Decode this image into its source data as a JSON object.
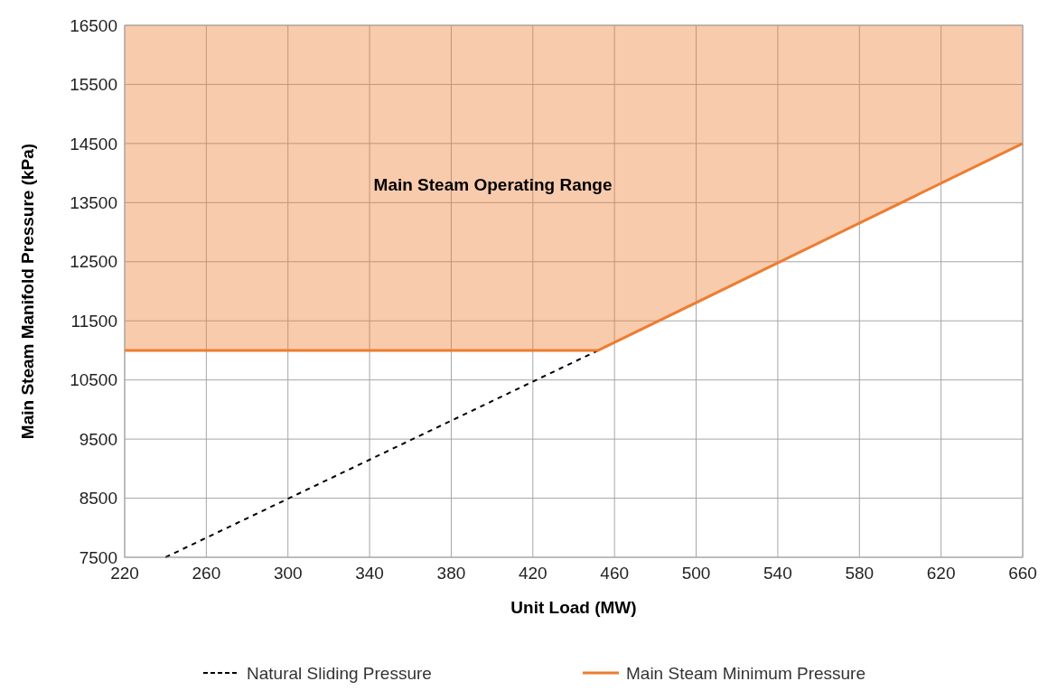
{
  "chart_data": {
    "type": "line",
    "xlabel": "Unit Load (MW)",
    "ylabel": "Main Steam Manifold Pressure (kPa)",
    "xlim": [
      220,
      660
    ],
    "xticks": [
      220,
      260,
      300,
      340,
      380,
      420,
      460,
      500,
      540,
      580,
      620,
      660
    ],
    "ylim": [
      7500,
      16500
    ],
    "yticks": [
      7500,
      8500,
      9500,
      10500,
      11500,
      12500,
      13500,
      14500,
      15500,
      16500
    ],
    "grid": true,
    "legend": "bottom",
    "marker": "none",
    "annotations": [
      "Main Steam Operating Range"
    ],
    "series": [
      {
        "name": "Natural Sliding Pressure",
        "color": "#000000",
        "line_style": "dashed",
        "x": [
          240,
          452
        ],
        "values": [
          7500,
          11000
        ]
      },
      {
        "name": "Main Steam Minimum Pressure",
        "color": "#ed7d31",
        "line_style": "solid",
        "x": [
          220,
          452,
          660
        ],
        "values": [
          11000,
          11000,
          14500
        ],
        "lower": [
          11000,
          11000,
          14500
        ],
        "upper": [
          16500,
          16500,
          16500
        ]
      }
    ]
  }
}
